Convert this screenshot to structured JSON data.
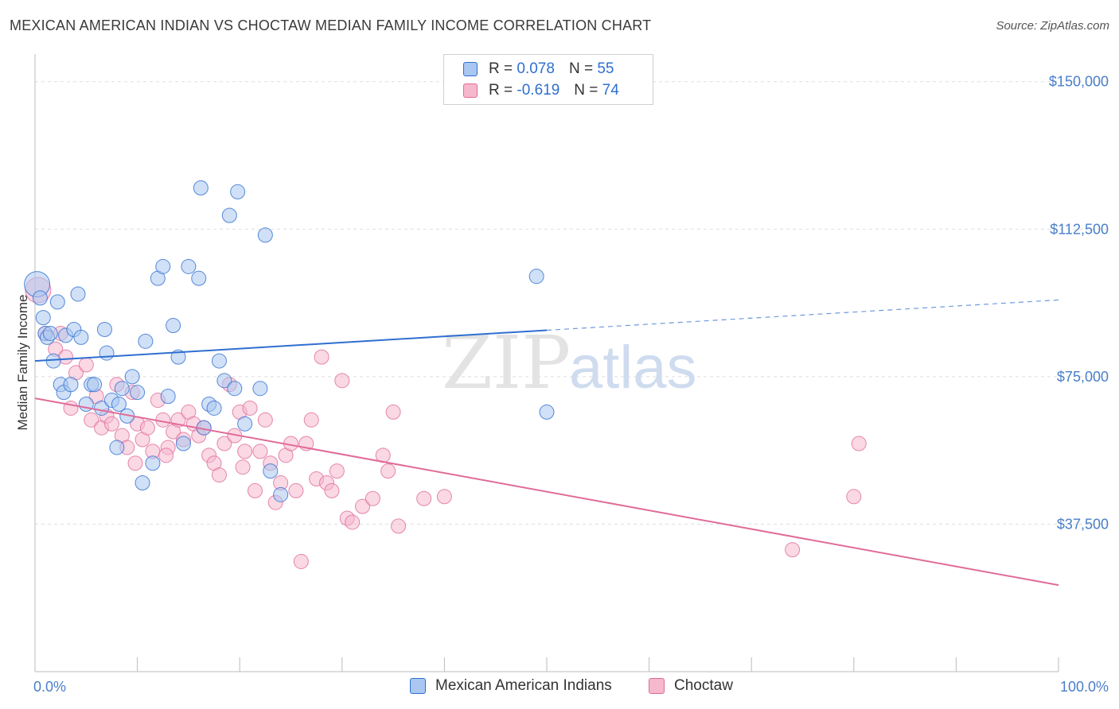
{
  "title": "MEXICAN AMERICAN INDIAN VS CHOCTAW MEDIAN FAMILY INCOME CORRELATION CHART",
  "source": "Source: ZipAtlas.com",
  "watermark": {
    "zip": "ZIP",
    "atlas": "atlas"
  },
  "colors": {
    "blue": "#2f6fd0",
    "blue_fill": "#a9c7f0",
    "pink": "#e06b98",
    "pink_fill": "#f6b8cd",
    "grid": "#dddddd",
    "tick_text": "#4a7fc9"
  },
  "legend": {
    "rows": [
      {
        "r_label": "R =",
        "r_value": "0.078",
        "n_label": "N =",
        "n_value": "55"
      },
      {
        "r_label": "R =",
        "r_value": "-0.619",
        "n_label": "N =",
        "n_value": "74"
      }
    ]
  },
  "bottom_legend": {
    "series1": "Mexican American Indians",
    "series2": "Choctaw"
  },
  "chart_data": {
    "type": "scatter",
    "xlabel": "",
    "ylabel": "Median Family Income",
    "xlim": [
      0,
      100
    ],
    "ylim": [
      0,
      155000
    ],
    "x_tick_labels": [
      "0.0%",
      "100.0%"
    ],
    "y_ticks": [
      37500,
      75000,
      112500,
      150000
    ],
    "y_tick_labels": [
      "$37,500",
      "$75,000",
      "$112,500",
      "$150,000"
    ],
    "grid": true,
    "legend_position": "top-center",
    "series": [
      {
        "name": "Mexican American Indians",
        "color": "#2f6fd0",
        "trend": {
          "x0": 0,
          "y0": 79000,
          "x1": 50,
          "y1": 86800,
          "x_dash_end": 100,
          "y_dash_end": 94500
        },
        "points": [
          [
            0.2,
            98500
          ],
          [
            0.5,
            95000
          ],
          [
            0.8,
            90000
          ],
          [
            1.0,
            86000
          ],
          [
            1.2,
            85000
          ],
          [
            1.5,
            86000
          ],
          [
            1.8,
            79000
          ],
          [
            2.2,
            94000
          ],
          [
            2.5,
            73000
          ],
          [
            2.8,
            71000
          ],
          [
            3.0,
            85500
          ],
          [
            3.5,
            73000
          ],
          [
            3.8,
            87000
          ],
          [
            4.2,
            96000
          ],
          [
            4.5,
            85000
          ],
          [
            5.0,
            68000
          ],
          [
            5.5,
            73000
          ],
          [
            5.8,
            73000
          ],
          [
            6.5,
            67000
          ],
          [
            6.8,
            87000
          ],
          [
            7.0,
            81000
          ],
          [
            7.5,
            69000
          ],
          [
            8.0,
            57000
          ],
          [
            8.2,
            68000
          ],
          [
            8.5,
            72000
          ],
          [
            9.0,
            65000
          ],
          [
            9.5,
            75000
          ],
          [
            10.0,
            71000
          ],
          [
            10.5,
            48000
          ],
          [
            10.8,
            84000
          ],
          [
            11.5,
            53000
          ],
          [
            12.0,
            100000
          ],
          [
            12.5,
            103000
          ],
          [
            13.0,
            70000
          ],
          [
            13.5,
            88000
          ],
          [
            14.0,
            80000
          ],
          [
            14.5,
            58000
          ],
          [
            15.0,
            103000
          ],
          [
            16.0,
            100000
          ],
          [
            17.0,
            68000
          ],
          [
            17.5,
            67000
          ],
          [
            18.0,
            79000
          ],
          [
            18.5,
            74000
          ],
          [
            19.0,
            116000
          ],
          [
            19.5,
            72000
          ],
          [
            20.5,
            63000
          ],
          [
            22.0,
            72000
          ],
          [
            23.0,
            51000
          ],
          [
            24.0,
            45000
          ],
          [
            16.5,
            62000
          ],
          [
            16.2,
            123000
          ],
          [
            19.8,
            122000
          ],
          [
            22.5,
            111000
          ],
          [
            50.0,
            66000
          ],
          [
            49.0,
            100500
          ]
        ]
      },
      {
        "name": "Choctaw",
        "color": "#e06b98",
        "trend": {
          "x0": 0,
          "y0": 69500,
          "x1": 100,
          "y1": 22000
        },
        "points": [
          [
            0.3,
            97000
          ],
          [
            1.0,
            86000
          ],
          [
            2.0,
            82000
          ],
          [
            2.5,
            86000
          ],
          [
            3.0,
            80000
          ],
          [
            3.5,
            67000
          ],
          [
            4.0,
            76000
          ],
          [
            5.0,
            78000
          ],
          [
            5.5,
            64000
          ],
          [
            6.0,
            70000
          ],
          [
            6.5,
            62000
          ],
          [
            7.0,
            65000
          ],
          [
            7.5,
            63000
          ],
          [
            8.0,
            73000
          ],
          [
            8.5,
            60000
          ],
          [
            9.0,
            57000
          ],
          [
            9.5,
            71000
          ],
          [
            10.0,
            63000
          ],
          [
            10.5,
            59000
          ],
          [
            11.0,
            62000
          ],
          [
            11.5,
            56000
          ],
          [
            12.0,
            69000
          ],
          [
            12.5,
            64000
          ],
          [
            13.0,
            57000
          ],
          [
            13.5,
            61000
          ],
          [
            14.0,
            64000
          ],
          [
            14.5,
            59000
          ],
          [
            15.0,
            66000
          ],
          [
            15.5,
            63000
          ],
          [
            16.0,
            60000
          ],
          [
            16.5,
            62000
          ],
          [
            17.0,
            55000
          ],
          [
            17.5,
            53000
          ],
          [
            18.0,
            50000
          ],
          [
            18.5,
            58000
          ],
          [
            19.0,
            73000
          ],
          [
            19.5,
            60000
          ],
          [
            20.0,
            66000
          ],
          [
            20.5,
            56000
          ],
          [
            21.0,
            67000
          ],
          [
            21.5,
            46000
          ],
          [
            22.0,
            56000
          ],
          [
            22.5,
            64000
          ],
          [
            23.0,
            53000
          ],
          [
            23.5,
            43000
          ],
          [
            24.0,
            48000
          ],
          [
            24.5,
            55000
          ],
          [
            25.0,
            58000
          ],
          [
            25.5,
            46000
          ],
          [
            26.0,
            28000
          ],
          [
            26.5,
            58000
          ],
          [
            27.0,
            64000
          ],
          [
            27.5,
            49000
          ],
          [
            28.0,
            80000
          ],
          [
            28.5,
            48000
          ],
          [
            29.0,
            46000
          ],
          [
            29.5,
            51000
          ],
          [
            30.0,
            74000
          ],
          [
            30.5,
            39000
          ],
          [
            31.0,
            38000
          ],
          [
            32.0,
            42000
          ],
          [
            33.0,
            44000
          ],
          [
            34.0,
            55000
          ],
          [
            34.5,
            51000
          ],
          [
            35.0,
            66000
          ],
          [
            35.5,
            37000
          ],
          [
            38.0,
            44000
          ],
          [
            40.0,
            44500
          ],
          [
            12.8,
            55000
          ],
          [
            9.8,
            53000
          ],
          [
            74.0,
            31000
          ],
          [
            80.0,
            44500
          ],
          [
            80.5,
            58000
          ],
          [
            20.3,
            52000
          ]
        ]
      }
    ]
  }
}
